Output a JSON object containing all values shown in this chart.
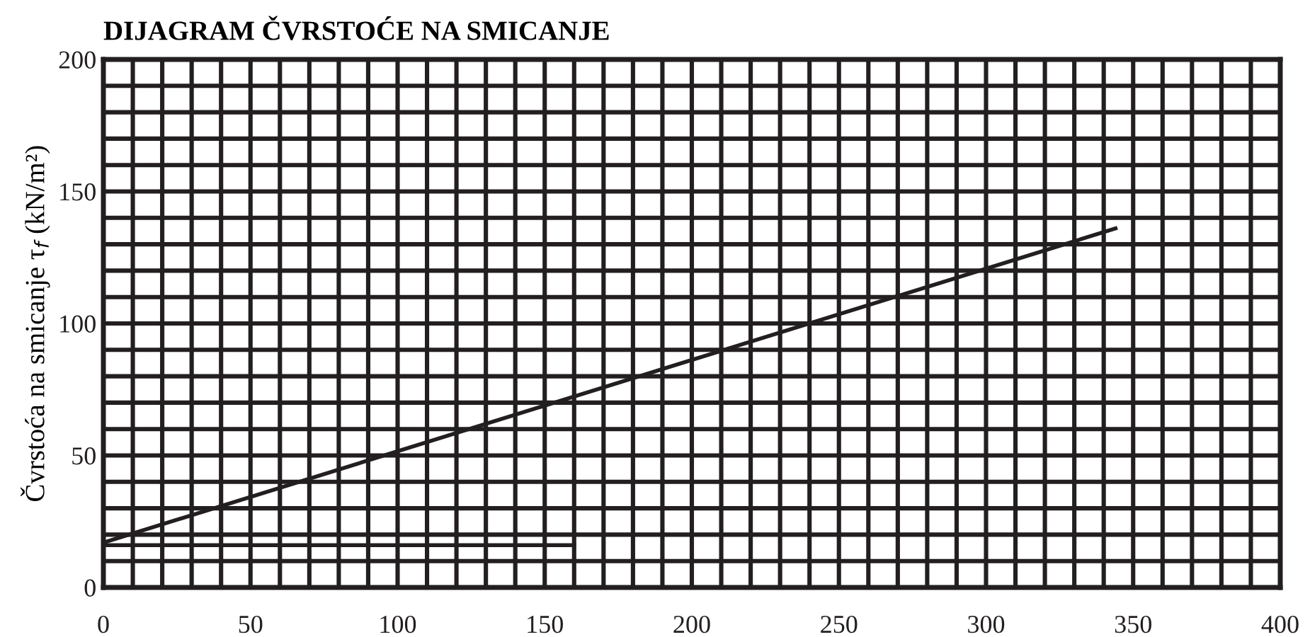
{
  "chart_data": {
    "type": "line",
    "title": "DIJAGRAM ČVRSTOĆE NA SMICANJE",
    "ylabel": "Čvrstoća na smicanje τ$_{f}$ (kN/m²)",
    "series": [
      {
        "x": [
          0,
          344
        ],
        "values": [
          17,
          136
        ],
        "color": "#231f20"
      },
      {
        "x": [
          0,
          160
        ],
        "values": [
          16,
          16
        ],
        "color": "#231f20"
      }
    ],
    "xlim": [
      0,
      400
    ],
    "ylim": [
      0,
      200
    ],
    "xticks": [
      0,
      {
        "value": 10,
        "label": null
      },
      {
        "value": 20,
        "label": null
      },
      {
        "value": 30,
        "label": null
      },
      {
        "value": 40,
        "label": null
      },
      50,
      {
        "value": 60,
        "label": null
      },
      {
        "value": 70,
        "label": null
      },
      {
        "value": 80,
        "label": null
      },
      {
        "value": 90,
        "label": null
      },
      100,
      {
        "value": 110,
        "label": null
      },
      {
        "value": 120,
        "label": null
      },
      {
        "value": 130,
        "label": null
      },
      {
        "value": 140,
        "label": null
      },
      150,
      {
        "value": 160,
        "label": null
      },
      {
        "value": 170,
        "label": null
      },
      {
        "value": 180,
        "label": null
      },
      {
        "value": 190,
        "label": null
      },
      200,
      {
        "value": 210,
        "label": null
      },
      {
        "value": 220,
        "label": null
      },
      {
        "value": 230,
        "label": null
      },
      {
        "value": 240,
        "label": null
      },
      250,
      {
        "value": 260,
        "label": null
      },
      {
        "value": 270,
        "label": null
      },
      {
        "value": 280,
        "label": null
      },
      {
        "value": 290,
        "label": null
      },
      300,
      {
        "value": 310,
        "label": null
      },
      {
        "value": 320,
        "label": null
      },
      {
        "value": 330,
        "label": null
      },
      {
        "value": 340,
        "label": null
      },
      350,
      {
        "value": 360,
        "label": null
      },
      {
        "value": 370,
        "label": null
      },
      {
        "value": 380,
        "label": null
      },
      {
        "value": 390,
        "label": null
      },
      400
    ],
    "yticks": [
      0,
      {
        "value": 10,
        "label": null
      },
      {
        "value": 20,
        "label": null
      },
      {
        "value": 30,
        "label": null
      },
      {
        "value": 40,
        "label": null
      },
      50,
      {
        "value": 60,
        "label": null
      },
      {
        "value": 70,
        "label": null
      },
      {
        "value": 80,
        "label": null
      },
      {
        "value": 90,
        "label": null
      },
      100,
      {
        "value": 110,
        "label": null
      },
      {
        "value": 120,
        "label": null
      },
      {
        "value": 130,
        "label": null
      },
      {
        "value": 140,
        "label": null
      },
      150,
      {
        "value": 160,
        "label": null
      },
      {
        "value": 170,
        "label": null
      },
      {
        "value": 180,
        "label": null
      },
      {
        "value": 190,
        "label": null
      },
      200
    ],
    "grid": true,
    "marker": "none",
    "line_style": "solid"
  }
}
